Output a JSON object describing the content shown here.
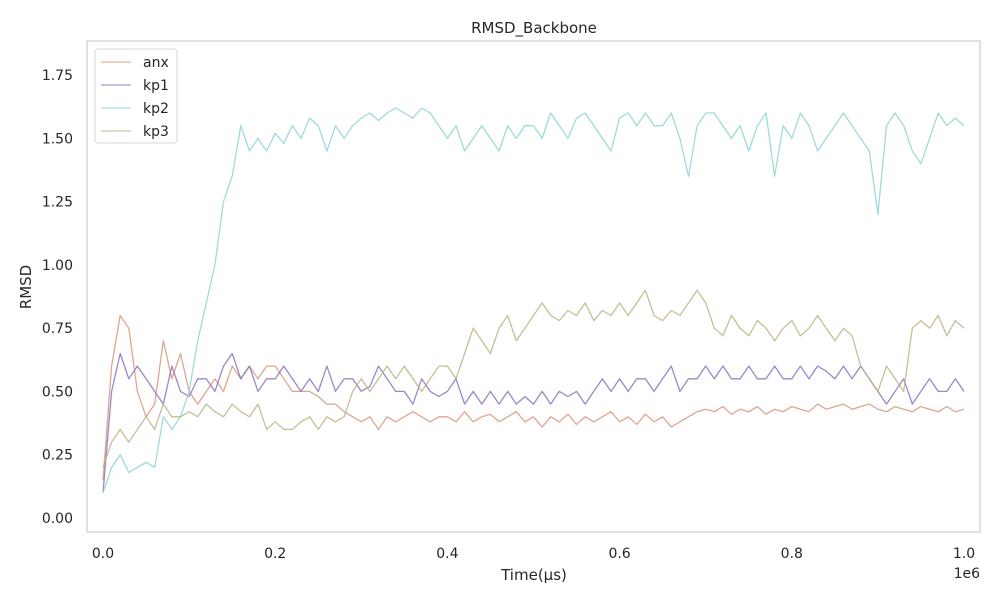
{
  "chart_data": {
    "type": "line",
    "title": "RMSD_Backbone",
    "xlabel": "Time(µs)",
    "ylabel": "RMSD",
    "x_offset_label": "1e6",
    "xlim": [
      -0.02,
      1.02
    ],
    "ylim": [
      -0.05,
      1.87
    ],
    "xticks": [
      "0.0",
      "0.2",
      "0.4",
      "0.6",
      "0.8",
      "1.0"
    ],
    "yticks": [
      "0.00",
      "0.25",
      "0.50",
      "0.75",
      "1.00",
      "1.25",
      "1.50",
      "1.75"
    ],
    "grid": false,
    "legend_position": "top-left",
    "x": [
      0,
      0.01,
      0.02,
      0.03,
      0.04,
      0.05,
      0.06,
      0.07,
      0.08,
      0.09,
      0.1,
      0.11,
      0.12,
      0.13,
      0.14,
      0.15,
      0.16,
      0.17,
      0.18,
      0.19,
      0.2,
      0.21,
      0.22,
      0.23,
      0.24,
      0.25,
      0.26,
      0.27,
      0.28,
      0.29,
      0.3,
      0.31,
      0.32,
      0.33,
      0.34,
      0.35,
      0.36,
      0.37,
      0.38,
      0.39,
      0.4,
      0.41,
      0.42,
      0.43,
      0.44,
      0.45,
      0.46,
      0.47,
      0.48,
      0.49,
      0.5,
      0.51,
      0.52,
      0.53,
      0.54,
      0.55,
      0.56,
      0.57,
      0.58,
      0.59,
      0.6,
      0.61,
      0.62,
      0.63,
      0.64,
      0.65,
      0.66,
      0.67,
      0.68,
      0.69,
      0.7,
      0.71,
      0.72,
      0.73,
      0.74,
      0.75,
      0.76,
      0.77,
      0.78,
      0.79,
      0.8,
      0.81,
      0.82,
      0.83,
      0.84,
      0.85,
      0.86,
      0.87,
      0.88,
      0.89,
      0.9,
      0.91,
      0.92,
      0.93,
      0.94,
      0.95,
      0.96,
      0.97,
      0.98,
      0.99,
      1.0
    ],
    "series": [
      {
        "name": "anx",
        "color": "#d9967e",
        "values": [
          0.15,
          0.6,
          0.8,
          0.75,
          0.5,
          0.4,
          0.45,
          0.7,
          0.55,
          0.65,
          0.5,
          0.45,
          0.5,
          0.55,
          0.5,
          0.6,
          0.55,
          0.6,
          0.55,
          0.6,
          0.6,
          0.55,
          0.5,
          0.5,
          0.5,
          0.48,
          0.45,
          0.45,
          0.42,
          0.4,
          0.38,
          0.4,
          0.35,
          0.4,
          0.38,
          0.4,
          0.42,
          0.4,
          0.38,
          0.4,
          0.4,
          0.38,
          0.42,
          0.38,
          0.4,
          0.41,
          0.38,
          0.4,
          0.42,
          0.38,
          0.4,
          0.36,
          0.4,
          0.38,
          0.41,
          0.37,
          0.4,
          0.38,
          0.4,
          0.42,
          0.38,
          0.4,
          0.37,
          0.41,
          0.38,
          0.4,
          0.36,
          0.38,
          0.4,
          0.42,
          0.43,
          0.42,
          0.44,
          0.41,
          0.43,
          0.42,
          0.44,
          0.41,
          0.43,
          0.42,
          0.44,
          0.43,
          0.42,
          0.45,
          0.43,
          0.44,
          0.45,
          0.43,
          0.44,
          0.45,
          0.43,
          0.42,
          0.44,
          0.43,
          0.42,
          0.44,
          0.43,
          0.42,
          0.44,
          0.42,
          0.43
        ]
      },
      {
        "name": "kp1",
        "color": "#8c72c0",
        "values": [
          0.1,
          0.5,
          0.65,
          0.55,
          0.6,
          0.55,
          0.5,
          0.45,
          0.6,
          0.5,
          0.48,
          0.55,
          0.55,
          0.5,
          0.6,
          0.65,
          0.55,
          0.6,
          0.5,
          0.55,
          0.55,
          0.6,
          0.55,
          0.5,
          0.55,
          0.5,
          0.6,
          0.5,
          0.55,
          0.55,
          0.5,
          0.52,
          0.6,
          0.55,
          0.5,
          0.5,
          0.45,
          0.55,
          0.5,
          0.48,
          0.5,
          0.55,
          0.45,
          0.5,
          0.45,
          0.5,
          0.45,
          0.5,
          0.45,
          0.48,
          0.45,
          0.5,
          0.45,
          0.5,
          0.48,
          0.5,
          0.45,
          0.5,
          0.55,
          0.5,
          0.55,
          0.5,
          0.55,
          0.55,
          0.5,
          0.55,
          0.6,
          0.5,
          0.55,
          0.55,
          0.6,
          0.55,
          0.6,
          0.55,
          0.55,
          0.6,
          0.55,
          0.55,
          0.6,
          0.55,
          0.55,
          0.6,
          0.55,
          0.6,
          0.58,
          0.55,
          0.6,
          0.55,
          0.6,
          0.55,
          0.5,
          0.45,
          0.5,
          0.55,
          0.45,
          0.5,
          0.55,
          0.5,
          0.5,
          0.55,
          0.5
        ]
      },
      {
        "name": "kp2",
        "color": "#8fd4d4",
        "values": [
          0.1,
          0.2,
          0.25,
          0.18,
          0.2,
          0.22,
          0.2,
          0.4,
          0.35,
          0.4,
          0.5,
          0.7,
          0.85,
          1.0,
          1.25,
          1.35,
          1.55,
          1.45,
          1.5,
          1.45,
          1.52,
          1.48,
          1.55,
          1.5,
          1.58,
          1.55,
          1.45,
          1.55,
          1.5,
          1.55,
          1.58,
          1.6,
          1.57,
          1.6,
          1.62,
          1.6,
          1.58,
          1.62,
          1.6,
          1.55,
          1.5,
          1.55,
          1.45,
          1.5,
          1.55,
          1.5,
          1.45,
          1.55,
          1.5,
          1.55,
          1.55,
          1.5,
          1.6,
          1.55,
          1.5,
          1.58,
          1.6,
          1.55,
          1.5,
          1.45,
          1.58,
          1.6,
          1.55,
          1.6,
          1.55,
          1.55,
          1.6,
          1.5,
          1.35,
          1.55,
          1.6,
          1.6,
          1.55,
          1.5,
          1.55,
          1.45,
          1.55,
          1.6,
          1.35,
          1.55,
          1.5,
          1.6,
          1.55,
          1.45,
          1.5,
          1.55,
          1.6,
          1.55,
          1.5,
          1.45,
          1.2,
          1.55,
          1.6,
          1.55,
          1.45,
          1.4,
          1.5,
          1.6,
          1.55,
          1.58,
          1.55
        ]
      },
      {
        "name": "kp3",
        "color": "#bdb385",
        "values": [
          0.2,
          0.3,
          0.35,
          0.3,
          0.35,
          0.4,
          0.35,
          0.45,
          0.4,
          0.4,
          0.42,
          0.4,
          0.45,
          0.42,
          0.4,
          0.45,
          0.42,
          0.4,
          0.45,
          0.35,
          0.38,
          0.35,
          0.35,
          0.38,
          0.4,
          0.35,
          0.4,
          0.38,
          0.4,
          0.5,
          0.55,
          0.5,
          0.55,
          0.6,
          0.55,
          0.6,
          0.55,
          0.5,
          0.55,
          0.6,
          0.6,
          0.55,
          0.65,
          0.75,
          0.7,
          0.65,
          0.75,
          0.8,
          0.7,
          0.75,
          0.8,
          0.85,
          0.8,
          0.78,
          0.82,
          0.8,
          0.85,
          0.78,
          0.82,
          0.8,
          0.85,
          0.8,
          0.85,
          0.9,
          0.8,
          0.78,
          0.82,
          0.8,
          0.85,
          0.9,
          0.85,
          0.75,
          0.72,
          0.8,
          0.75,
          0.72,
          0.78,
          0.75,
          0.7,
          0.75,
          0.78,
          0.72,
          0.75,
          0.8,
          0.75,
          0.7,
          0.75,
          0.72,
          0.6,
          0.55,
          0.5,
          0.6,
          0.55,
          0.5,
          0.75,
          0.78,
          0.75,
          0.8,
          0.72,
          0.78,
          0.75
        ]
      }
    ]
  }
}
